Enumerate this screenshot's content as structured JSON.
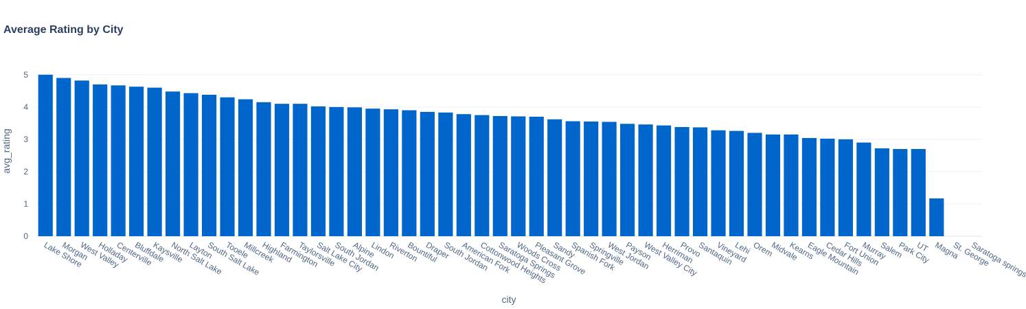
{
  "chart_data": {
    "type": "bar",
    "title": "Average Rating by City",
    "xlabel": "city",
    "ylabel": "avg_rating",
    "ylim": [
      0,
      5.4
    ],
    "yticks": [
      0,
      1,
      2,
      3,
      4,
      5
    ],
    "grid": true,
    "bar_color": "#0066cc",
    "categories": [
      "Lake Shore",
      "Morgan",
      "West Valley",
      "Holladay",
      "Centerville",
      "Bluffdale",
      "Kaysville",
      "North Salt Lake",
      "Layton",
      "South Salt Lake",
      "Tooele",
      "Millcreek",
      "Highland",
      "Farmington",
      "Taylorsville",
      "Salt Lake City",
      "South Jordan",
      "Alpine",
      "Lindon",
      "Riverton",
      "Bountiful",
      "Draper",
      "South Jordan",
      "American Fork",
      "Cottonwood Heights",
      "Saratoga Springs",
      "Woods Cross",
      "Pleasant Grove",
      "Sandy",
      "Spanish Fork",
      "Springville",
      "West Jordan",
      "Payson",
      "West Valley City",
      "Herriman",
      "Provo",
      "Santaquin",
      "Vineyard",
      "Lehi",
      "Orem",
      "Midvale",
      "Kearns",
      "Eagle Mountain",
      "Cedar Hills",
      "Fort Union",
      "Murray",
      "Salem",
      "Park City",
      "UT",
      "Magna",
      "St. George",
      "Saratoga springs"
    ],
    "values": [
      5.0,
      4.9,
      4.82,
      4.7,
      4.67,
      4.63,
      4.6,
      4.48,
      4.43,
      4.38,
      4.3,
      4.24,
      4.15,
      4.1,
      4.1,
      4.02,
      4.0,
      3.99,
      3.95,
      3.93,
      3.9,
      3.85,
      3.83,
      3.78,
      3.75,
      3.72,
      3.71,
      3.7,
      3.62,
      3.56,
      3.55,
      3.54,
      3.48,
      3.46,
      3.43,
      3.38,
      3.37,
      3.28,
      3.26,
      3.2,
      3.15,
      3.15,
      3.04,
      3.02,
      3.0,
      2.9,
      2.72,
      2.7,
      2.7,
      1.17,
      null,
      null
    ]
  }
}
